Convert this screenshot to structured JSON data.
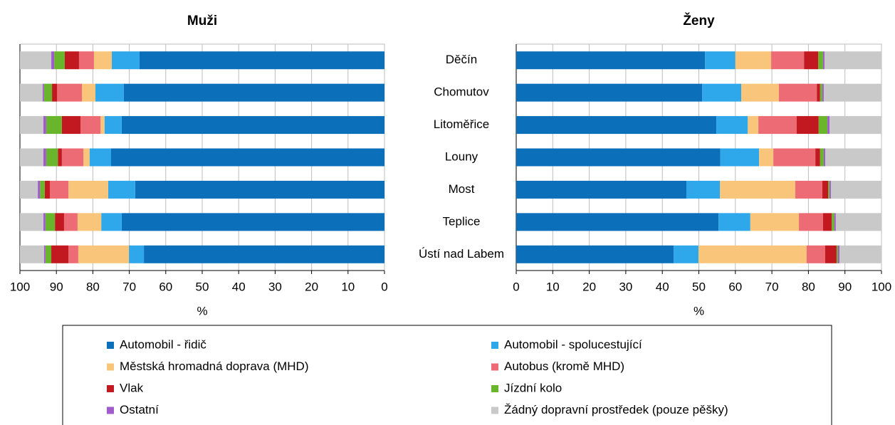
{
  "chart_data": [
    {
      "type": "stacked-barh",
      "title": "Muži",
      "xlabel": "%",
      "categories": [
        "Děčín",
        "Chomutov",
        "Litoměřice",
        "Louny",
        "Most",
        "Teplice",
        "Ústí nad Labem"
      ],
      "xlim": [
        100,
        0
      ],
      "xticks": [
        100,
        90,
        80,
        70,
        60,
        50,
        40,
        30,
        20,
        10,
        0
      ],
      "grid": true,
      "series": [
        {
          "name": "Automobil - řidič",
          "color": "#0b6fba",
          "values": [
            67.2,
            71.5,
            72.1,
            75.0,
            68.4,
            72.1,
            66.0
          ]
        },
        {
          "name": "Automobil - spolucestující",
          "color": "#2ea8ea",
          "values": [
            7.6,
            7.8,
            4.7,
            5.9,
            7.4,
            5.6,
            4.1
          ]
        },
        {
          "name": "Městská hromadná doprava (MHD)",
          "color": "#f9c57a",
          "values": [
            4.9,
            3.7,
            1.1,
            1.7,
            10.9,
            6.5,
            13.9
          ]
        },
        {
          "name": "Autobus (kromě MHD)",
          "color": "#ec6b74",
          "values": [
            4.1,
            6.8,
            5.5,
            5.9,
            5.1,
            3.7,
            2.7
          ]
        },
        {
          "name": "Vlak",
          "color": "#c1191f",
          "values": [
            3.9,
            1.4,
            5.1,
            1.1,
            1.4,
            2.5,
            4.7
          ]
        },
        {
          "name": "Jízdní kolo",
          "color": "#69b52b",
          "values": [
            2.9,
            2.2,
            4.3,
            3.2,
            1.3,
            2.6,
            1.6
          ]
        },
        {
          "name": "Ostatní",
          "color": "#a05bcc",
          "values": [
            0.8,
            0.4,
            0.8,
            0.8,
            0.6,
            0.6,
            0.4
          ]
        },
        {
          "name": "Žádný dopravní prostředek (pouze pěšky)",
          "color": "#c9c9c9",
          "values": [
            8.6,
            6.2,
            6.4,
            6.4,
            4.9,
            6.4,
            6.6
          ]
        }
      ]
    },
    {
      "type": "stacked-barh",
      "title": "Ženy",
      "xlabel": "%",
      "xlim": [
        0,
        100
      ],
      "xticks": [
        0,
        10,
        20,
        30,
        40,
        50,
        60,
        70,
        80,
        90,
        100
      ],
      "grid": true,
      "series": [
        {
          "color": "#0b6fba",
          "values": [
            51.7,
            50.9,
            54.8,
            55.9,
            46.6,
            55.4,
            43.1
          ]
        },
        {
          "color": "#2ea8ea",
          "values": [
            8.3,
            10.7,
            8.6,
            10.6,
            9.2,
            8.7,
            6.8
          ]
        },
        {
          "color": "#f9c57a",
          "values": [
            9.8,
            10.3,
            2.9,
            3.9,
            20.6,
            13.3,
            29.6
          ]
        },
        {
          "color": "#ec6b74",
          "values": [
            9.0,
            10.4,
            10.5,
            11.5,
            7.4,
            6.6,
            5.1
          ]
        },
        {
          "color": "#c1191f",
          "values": [
            3.9,
            0.9,
            6.0,
            1.3,
            1.6,
            2.4,
            3.1
          ]
        },
        {
          "color": "#69b52b",
          "values": [
            1.3,
            0.6,
            2.4,
            1.0,
            0.4,
            0.7,
            0.4
          ]
        },
        {
          "color": "#a05bcc",
          "values": [
            0.4,
            0.4,
            0.6,
            0.4,
            0.4,
            0.4,
            0.4
          ]
        },
        {
          "color": "#c9c9c9",
          "values": [
            15.6,
            15.8,
            14.2,
            15.4,
            13.8,
            12.5,
            11.5
          ]
        }
      ]
    }
  ]
}
